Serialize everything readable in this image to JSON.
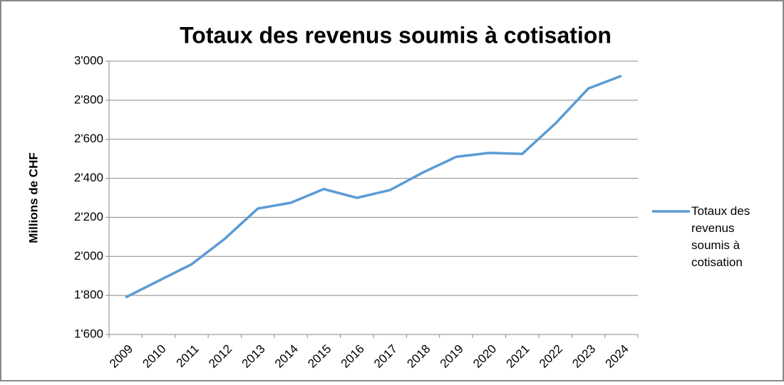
{
  "chart_data": {
    "type": "line",
    "title": "Totaux des revenus soumis à cotisation",
    "y_label": "Millions de CHF",
    "categories": [
      "2009",
      "2010",
      "2011",
      "2012",
      "2013",
      "2014",
      "2015",
      "2016",
      "2017",
      "2018",
      "2019",
      "2020",
      "2021",
      "2022",
      "2023",
      "2024"
    ],
    "series": [
      {
        "name": "Totaux des revenus soumis à cotisation",
        "color": "#5b9bd5",
        "values": [
          1790,
          1875,
          1960,
          2090,
          2245,
          2275,
          2345,
          2300,
          2340,
          2430,
          2510,
          2530,
          2525,
          2680,
          2860,
          2925
        ]
      }
    ],
    "ylim": [
      1600,
      3000
    ],
    "yticks": [
      {
        "value": 1600,
        "label": "1'600"
      },
      {
        "value": 1800,
        "label": "1'800"
      },
      {
        "value": 2000,
        "label": "2'000"
      },
      {
        "value": 2200,
        "label": "2'200"
      },
      {
        "value": 2400,
        "label": "2'400"
      },
      {
        "value": 2600,
        "label": "2'600"
      },
      {
        "value": 2800,
        "label": "2'800"
      },
      {
        "value": 3000,
        "label": "3'000"
      }
    ],
    "grid": true,
    "legend": "right"
  }
}
